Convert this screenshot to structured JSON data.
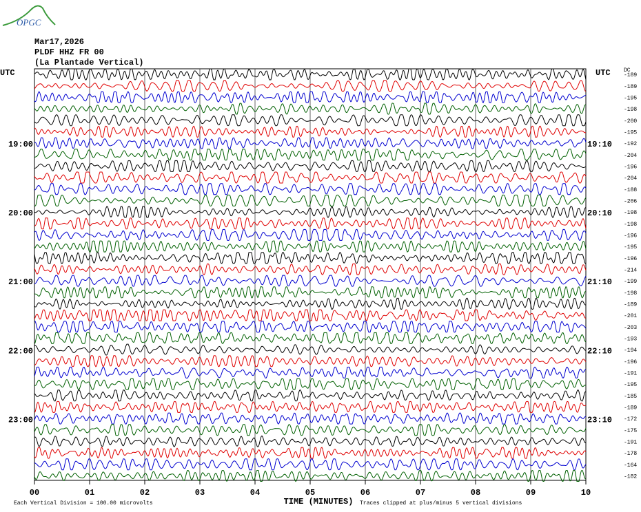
{
  "header": {
    "logo": "OPGC",
    "date": "Mar17,2026",
    "station": "PLDF HHZ FR 00",
    "location": "(La Plantade Vertical)"
  },
  "left_top": "UTC",
  "right_top": "UTC",
  "dc_header": "DC",
  "left_labels": [
    null,
    null,
    null,
    null,
    null,
    null,
    "19:00",
    null,
    null,
    null,
    null,
    null,
    "20:00",
    null,
    null,
    null,
    null,
    null,
    "21:00",
    null,
    null,
    null,
    null,
    null,
    "22:00",
    null,
    null,
    null,
    null,
    null,
    "23:00",
    null,
    null,
    null,
    null,
    null
  ],
  "right_labels": [
    null,
    null,
    null,
    null,
    null,
    null,
    "19:10",
    null,
    null,
    null,
    null,
    null,
    "20:10",
    null,
    null,
    null,
    null,
    null,
    "21:10",
    null,
    null,
    null,
    null,
    null,
    "22:10",
    null,
    null,
    null,
    null,
    null,
    "23:10",
    null,
    null,
    null,
    null,
    null
  ],
  "dc": [
    -189,
    -189,
    -195,
    -198,
    -200,
    -195,
    -192,
    -204,
    -196,
    -204,
    -188,
    -206,
    -198,
    -198,
    -196,
    -195,
    -196,
    -214,
    -199,
    -198,
    -189,
    -201,
    -203,
    -193,
    -194,
    -196,
    -191,
    -195,
    -185,
    -189,
    -172,
    -175,
    -191,
    -178,
    -164,
    -182
  ],
  "x_labels": [
    "00",
    "01",
    "02",
    "03",
    "04",
    "05",
    "06",
    "07",
    "08",
    "09",
    "10"
  ],
  "x_title": "TIME (MINUTES)",
  "footer_left": "Each Vertical Division =  100.00 microvolts",
  "footer_right": "Traces clipped at plus/minus 5 vertical divisions"
}
